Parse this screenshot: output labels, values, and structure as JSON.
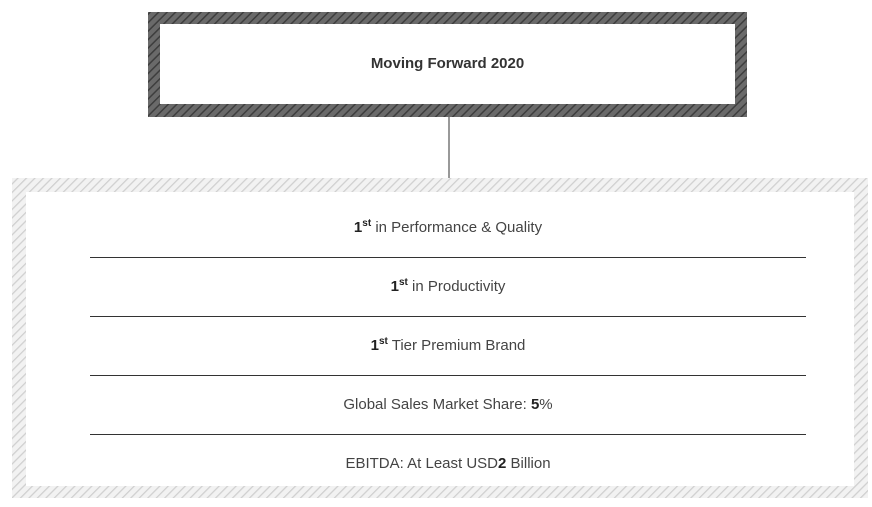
{
  "title": "Moving Forward 2020",
  "items": [
    {
      "runs": [
        {
          "text": "1",
          "style": "bold"
        },
        {
          "text": "st",
          "style": "sup"
        },
        {
          "text": " in Performance & Quality"
        }
      ]
    },
    {
      "runs": [
        {
          "text": "1",
          "style": "bold"
        },
        {
          "text": "st",
          "style": "sup"
        },
        {
          "text": " in Productivity"
        }
      ]
    },
    {
      "runs": [
        {
          "text": "1",
          "style": "bold"
        },
        {
          "text": "st",
          "style": "sup"
        },
        {
          "text": " Tier Premium Brand"
        }
      ]
    },
    {
      "runs": [
        {
          "text": "Global Sales Market Share: "
        },
        {
          "text": "5",
          "style": "bold"
        },
        {
          "text": "%"
        }
      ]
    },
    {
      "runs": [
        {
          "text": "EBITDA: At Least USD"
        },
        {
          "text": "2",
          "style": "bold"
        },
        {
          "text": " Billion"
        }
      ]
    }
  ]
}
